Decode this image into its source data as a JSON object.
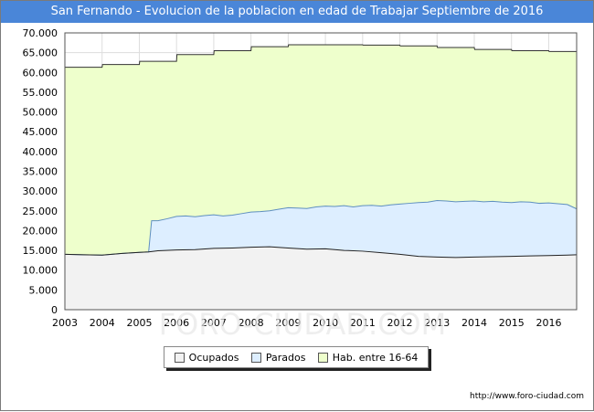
{
  "title": "San Fernando - Evolucion de la poblacion en edad de Trabajar Septiembre de 2016",
  "source": "http://www.foro-ciudad.com",
  "watermark": "FORO-CIUDAD.COM",
  "chart_data": {
    "type": "area",
    "title": "San Fernando - Evolucion de la poblacion en edad de Trabajar Septiembre de 2016",
    "xlabel": "",
    "ylabel": "",
    "xlim": [
      2003,
      2016.75
    ],
    "ylim": [
      0,
      70000
    ],
    "x_ticks": [
      "2003",
      "2004",
      "2005",
      "2006",
      "2007",
      "2008",
      "2009",
      "2010",
      "2011",
      "2012",
      "2013",
      "2014",
      "2015",
      "2016"
    ],
    "y_ticks": [
      "0",
      "5.000",
      "10.000",
      "15.000",
      "20.000",
      "25.000",
      "30.000",
      "35.000",
      "40.000",
      "45.000",
      "50.000",
      "55.000",
      "60.000",
      "65.000",
      "70.000"
    ],
    "grid": true,
    "legend_position": "bottom",
    "colors": {
      "ocupados_fill": "#f2f2f2",
      "parados_fill": "#ddeeff",
      "hab_fill": "#eeffcc",
      "hab_line": "#333333",
      "parados_line": "#5f8fbf",
      "ocupados_line": "#222222",
      "title_bg": "#4a86d8",
      "grid": "#dddddd"
    },
    "series": [
      {
        "name": "Hab. entre 16-64",
        "x": [
          2003,
          2004,
          2004.01,
          2005,
          2005.01,
          2006,
          2006.01,
          2007,
          2007.01,
          2008,
          2008.01,
          2009,
          2009.01,
          2010,
          2010.01,
          2011,
          2011.01,
          2012,
          2012.01,
          2013,
          2013.01,
          2014,
          2014.01,
          2015,
          2015.01,
          2016,
          2016.01,
          2016.75
        ],
        "values": [
          61300,
          61300,
          62000,
          62000,
          62800,
          62800,
          64500,
          64500,
          65500,
          65500,
          66500,
          66500,
          67000,
          67000,
          67000,
          67000,
          66900,
          66900,
          66700,
          66700,
          66300,
          66300,
          65800,
          65800,
          65500,
          65500,
          65300,
          65300
        ]
      },
      {
        "name": "Parados",
        "x": [
          2003,
          2003.5,
          2004,
          2004.5,
          2005,
          2005.25,
          2005.33,
          2005.5,
          2005.75,
          2006,
          2006.25,
          2006.5,
          2006.75,
          2007,
          2007.25,
          2007.5,
          2007.75,
          2008,
          2008.25,
          2008.5,
          2008.75,
          2009,
          2009.25,
          2009.5,
          2009.75,
          2010,
          2010.25,
          2010.5,
          2010.75,
          2011,
          2011.25,
          2011.5,
          2011.75,
          2012,
          2012.25,
          2012.5,
          2012.75,
          2013,
          2013.25,
          2013.5,
          2013.75,
          2014,
          2014.25,
          2014.5,
          2014.75,
          2015,
          2015.25,
          2015.5,
          2015.75,
          2016,
          2016.25,
          2016.5,
          2016.75
        ],
        "values": [
          14000,
          13900,
          13800,
          14200,
          14500,
          14600,
          22500,
          22500,
          23000,
          23600,
          23700,
          23500,
          23800,
          24000,
          23700,
          23900,
          24300,
          24700,
          24800,
          25000,
          25400,
          25800,
          25700,
          25600,
          26000,
          26200,
          26100,
          26300,
          26000,
          26300,
          26400,
          26200,
          26500,
          26700,
          26900,
          27100,
          27200,
          27600,
          27500,
          27300,
          27400,
          27500,
          27300,
          27400,
          27200,
          27100,
          27300,
          27200,
          26900,
          27000,
          26800,
          26600,
          25500
        ]
      },
      {
        "name": "Ocupados",
        "x": [
          2003,
          2003.5,
          2004,
          2004.5,
          2005,
          2005.25,
          2005.5,
          2006,
          2006.5,
          2007,
          2007.5,
          2008,
          2008.5,
          2009,
          2009.5,
          2010,
          2010.5,
          2011,
          2011.5,
          2012,
          2012.5,
          2013,
          2013.5,
          2014,
          2014.5,
          2015,
          2015.5,
          2016,
          2016.5,
          2016.75
        ],
        "values": [
          14000,
          13900,
          13800,
          14200,
          14500,
          14600,
          14900,
          15100,
          15200,
          15500,
          15600,
          15800,
          15900,
          15600,
          15300,
          15400,
          15000,
          14800,
          14400,
          14000,
          13500,
          13300,
          13200,
          13300,
          13400,
          13500,
          13600,
          13700,
          13800,
          13900
        ]
      }
    ]
  },
  "legend": {
    "items": [
      {
        "label": "Ocupados",
        "color": "#f2f2f2"
      },
      {
        "label": "Parados",
        "color": "#ddeeff"
      },
      {
        "label": "Hab. entre 16-64",
        "color": "#eeffcc"
      }
    ]
  }
}
